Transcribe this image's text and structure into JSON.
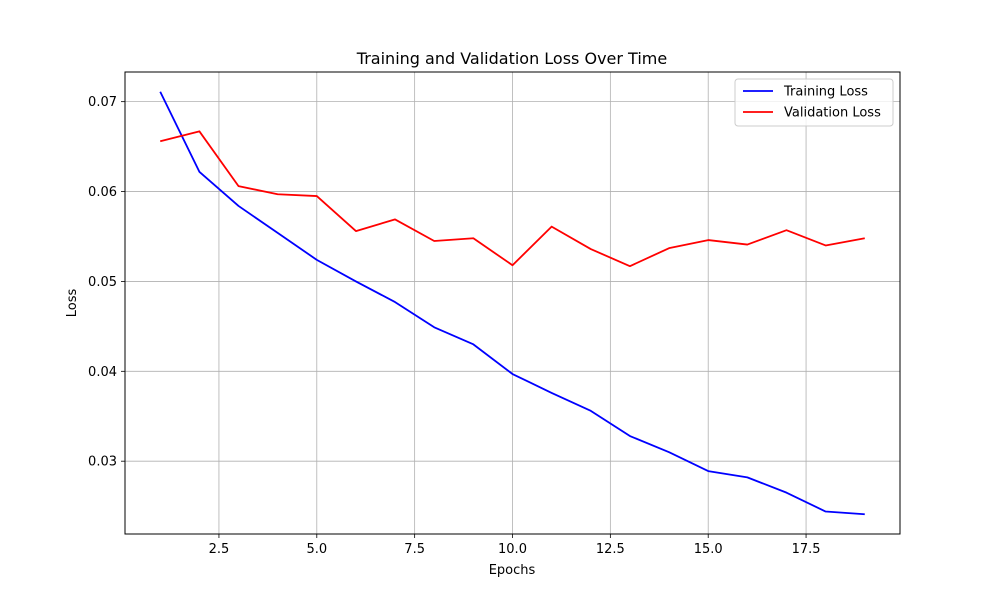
{
  "chart_data": {
    "type": "line",
    "title": "Training and Validation Loss Over Time",
    "xlabel": "Epochs",
    "ylabel": "Loss",
    "xlim": [
      0.1,
      19.9
    ],
    "ylim": [
      0.0219,
      0.0733
    ],
    "xticks": [
      2.5,
      5.0,
      7.5,
      10.0,
      12.5,
      15.0,
      17.5
    ],
    "xtick_labels": [
      "2.5",
      "5.0",
      "7.5",
      "10.0",
      "12.5",
      "15.0",
      "17.5"
    ],
    "yticks": [
      0.03,
      0.04,
      0.05,
      0.06,
      0.07
    ],
    "ytick_labels": [
      "0.03",
      "0.04",
      "0.05",
      "0.06",
      "0.07"
    ],
    "grid": true,
    "legend_position": "top-right",
    "x": [
      1,
      2,
      3,
      4,
      5,
      6,
      7,
      8,
      9,
      10,
      11,
      12,
      13,
      14,
      15,
      16,
      17,
      18,
      19
    ],
    "series": [
      {
        "name": "Training Loss",
        "color": "#0000ff",
        "values": [
          0.0711,
          0.0622,
          0.0584,
          0.0554,
          0.0524,
          0.05,
          0.0477,
          0.0449,
          0.043,
          0.0397,
          0.0376,
          0.0356,
          0.0328,
          0.031,
          0.0289,
          0.0282,
          0.0265,
          0.0244,
          0.0241
        ]
      },
      {
        "name": "Validation Loss",
        "color": "#ff0000",
        "values": [
          0.0656,
          0.0667,
          0.0606,
          0.0597,
          0.0595,
          0.0556,
          0.0569,
          0.0545,
          0.0548,
          0.0518,
          0.0561,
          0.0536,
          0.0517,
          0.0537,
          0.0546,
          0.0541,
          0.0557,
          0.054,
          0.0548
        ]
      }
    ]
  }
}
